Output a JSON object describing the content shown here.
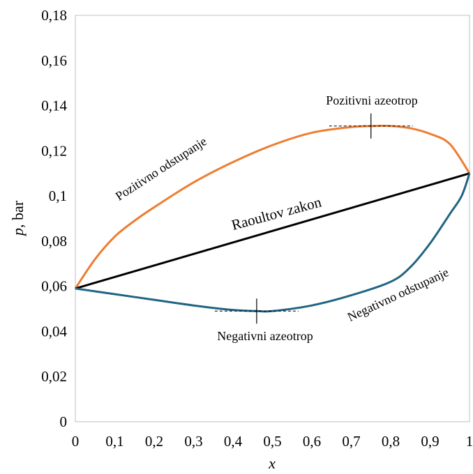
{
  "chart_data": {
    "type": "line",
    "xlabel": "x",
    "ylabel_var": "p",
    "ylabel_unit": ", bar",
    "xlim": [
      0,
      1
    ],
    "ylim": [
      0,
      0.18
    ],
    "x_ticks": [
      0,
      0.1,
      0.2,
      0.3,
      0.4,
      0.5,
      0.6,
      0.7,
      0.8,
      0.9,
      1
    ],
    "x_tick_labels": [
      "0",
      "0,1",
      "0,2",
      "0,3",
      "0,4",
      "0,5",
      "0,6",
      "0,7",
      "0,8",
      "0,9",
      "1"
    ],
    "y_ticks": [
      0,
      0.02,
      0.04,
      0.06,
      0.08,
      0.1,
      0.12,
      0.14,
      0.16,
      0.18
    ],
    "y_tick_labels": [
      "0",
      "0,02",
      "0,04",
      "0,06",
      "0,08",
      "0,1",
      "0,12",
      "0,14",
      "0,16",
      "0,18"
    ],
    "grid": false,
    "legend": "none",
    "series": [
      {
        "color": "#ED7D31",
        "x": [
          0,
          0.05,
          0.1,
          0.15,
          0.2,
          0.3,
          0.4,
          0.5,
          0.6,
          0.7,
          0.76,
          0.8,
          0.85,
          0.9,
          0.95,
          1.0
        ],
        "y": [
          0.059,
          0.072,
          0.082,
          0.089,
          0.095,
          0.106,
          0.115,
          0.1225,
          0.128,
          0.1305,
          0.131,
          0.131,
          0.13,
          0.1275,
          0.123,
          0.11
        ]
      },
      {
        "color": "#000000",
        "x": [
          0,
          1
        ],
        "y": [
          0.059,
          0.11
        ]
      },
      {
        "color": "#1F6482",
        "x": [
          0,
          0.1,
          0.2,
          0.3,
          0.4,
          0.46,
          0.5,
          0.6,
          0.7,
          0.8,
          0.85,
          0.9,
          0.95,
          0.98,
          1.0
        ],
        "y": [
          0.059,
          0.0565,
          0.054,
          0.0515,
          0.0495,
          0.049,
          0.049,
          0.0515,
          0.056,
          0.062,
          0.0685,
          0.079,
          0.092,
          0.1,
          0.11
        ]
      }
    ],
    "annotations": [
      {
        "text": "Pozitivni azeotrop",
        "x": 0.75,
        "y": 0.131
      },
      {
        "text": "Negativni azeotrop",
        "x": 0.46,
        "y": 0.049
      },
      {
        "text": "Pozitivno odstupanje"
      },
      {
        "text": "Negativno odstupanje"
      },
      {
        "text": "Raoultov zakon"
      }
    ]
  }
}
